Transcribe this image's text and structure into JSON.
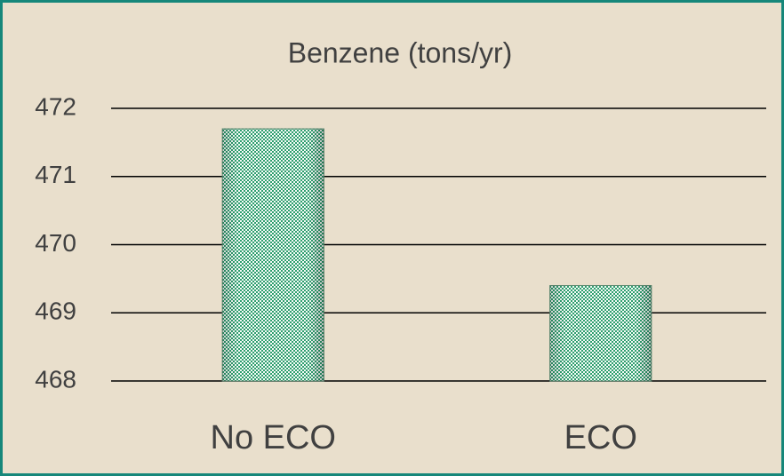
{
  "chart_data": {
    "type": "bar",
    "title": "Benzene (tons/yr)",
    "categories": [
      "No ECO",
      "ECO"
    ],
    "values": [
      471.7,
      469.4
    ],
    "color": "#2e9e6e",
    "ylim": [
      468,
      472
    ],
    "yticks": [
      468,
      469,
      470,
      471,
      472
    ],
    "grid": true
  }
}
